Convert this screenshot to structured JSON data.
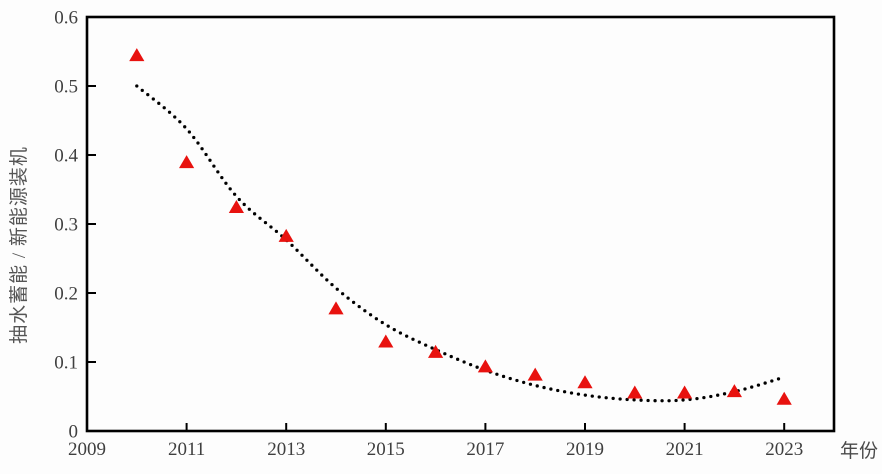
{
  "chart_data": {
    "type": "scatter",
    "title": "",
    "xlabel": "年份",
    "ylabel": "抽水蓄能 / 新能源装机",
    "xlim": [
      2009,
      2024
    ],
    "ylim": [
      0,
      0.6
    ],
    "grid": false,
    "legend": false,
    "x_ticks": {
      "values": [
        2009,
        2011,
        2013,
        2015,
        2017,
        2019,
        2021,
        2023
      ],
      "labels": [
        "2009",
        "2011",
        "2013",
        "2015",
        "2017",
        "2019",
        "2021",
        "2023"
      ]
    },
    "y_ticks": {
      "values": [
        0,
        0.1,
        0.2,
        0.3,
        0.4,
        0.5,
        0.6
      ],
      "labels": [
        "0",
        "0.1",
        "0.2",
        "0.3",
        "0.4",
        "0.5",
        "0.6"
      ]
    },
    "series": [
      {
        "marker": "triangle",
        "color": "#e8120f",
        "x": [
          2010,
          2011,
          2012,
          2013,
          2014,
          2015,
          2016,
          2017,
          2018,
          2019,
          2020,
          2021,
          2022,
          2023
        ],
        "y": [
          0.545,
          0.39,
          0.325,
          0.283,
          0.178,
          0.13,
          0.115,
          0.094,
          0.082,
          0.071,
          0.056,
          0.056,
          0.058,
          0.047
        ]
      }
    ],
    "trendline": {
      "style": "dotted",
      "color": "#000000",
      "x": [
        2010,
        2011,
        2012,
        2013,
        2014,
        2015,
        2016,
        2017,
        2018,
        2019,
        2020,
        2021,
        2022,
        2023
      ],
      "y": [
        0.5,
        0.438,
        0.34,
        0.277,
        0.207,
        0.154,
        0.118,
        0.088,
        0.066,
        0.052,
        0.045,
        0.045,
        0.057,
        0.078
      ]
    },
    "colors": {
      "axis": "#000000",
      "tick_label": "#3f3f3f",
      "axis_title": "#555555"
    }
  }
}
